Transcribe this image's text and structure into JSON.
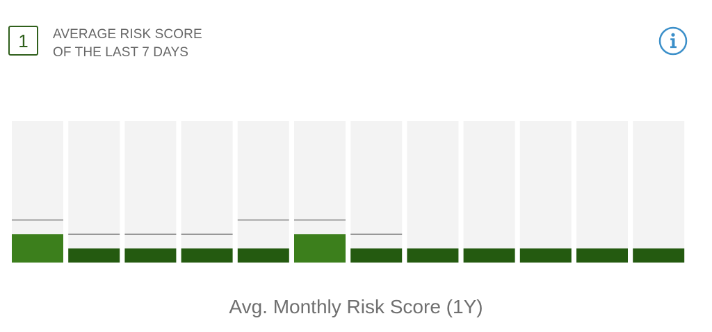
{
  "header": {
    "score": "1",
    "title_line1": "AVERAGE RISK SCORE",
    "title_line2": "OF THE LAST 7 DAYS",
    "info_icon": "info-icon"
  },
  "colors": {
    "bar_default": "#245a10",
    "bar_highlight": "#3c7f1c",
    "track": "#f3f3f3",
    "marker": "#8a8a8a",
    "info": "#3b8fc9",
    "score_box": "#2f5f1b"
  },
  "chart_data": {
    "type": "bar",
    "xlabel": "Avg. Monthly Risk Score (1Y)",
    "ylim": [
      0,
      10
    ],
    "series": [
      {
        "values": [
          2,
          1,
          1,
          1,
          1,
          2,
          1,
          1,
          1,
          1,
          1,
          1
        ],
        "markers": [
          3,
          2,
          2,
          2,
          3,
          3,
          2,
          null,
          null,
          null,
          null,
          null
        ],
        "highlight": [
          true,
          false,
          false,
          false,
          false,
          true,
          false,
          false,
          false,
          false,
          false,
          false
        ]
      }
    ],
    "grid": false
  }
}
